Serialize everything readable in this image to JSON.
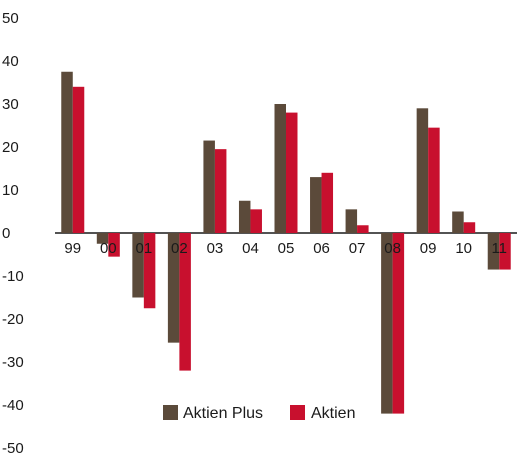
{
  "chart_data": {
    "type": "bar",
    "categories": [
      "99",
      "00",
      "01",
      "02",
      "03",
      "04",
      "05",
      "06",
      "07",
      "08",
      "09",
      "10",
      "11"
    ],
    "series": [
      {
        "name": "Aktien Plus",
        "color": "#5b4a3a",
        "values": [
          37.5,
          -2.5,
          -15,
          -25.5,
          21.5,
          7.5,
          30,
          13,
          5.5,
          -42,
          29,
          5,
          -8.5
        ]
      },
      {
        "name": "Aktien",
        "color": "#c8102e",
        "values": [
          34,
          -5.5,
          -17.5,
          -32,
          19.5,
          5.5,
          28,
          14,
          1.8,
          -42,
          24.5,
          2.5,
          -8.5
        ]
      }
    ],
    "yticks": [
      "50",
      "40",
      "30",
      "20",
      "10",
      "0",
      "-10",
      "-20",
      "-30",
      "-40",
      "-50"
    ],
    "ylim": [
      -50,
      50
    ],
    "grid": false,
    "legend_position": "bottom-center",
    "title": "",
    "xlabel": "",
    "ylabel": ""
  }
}
